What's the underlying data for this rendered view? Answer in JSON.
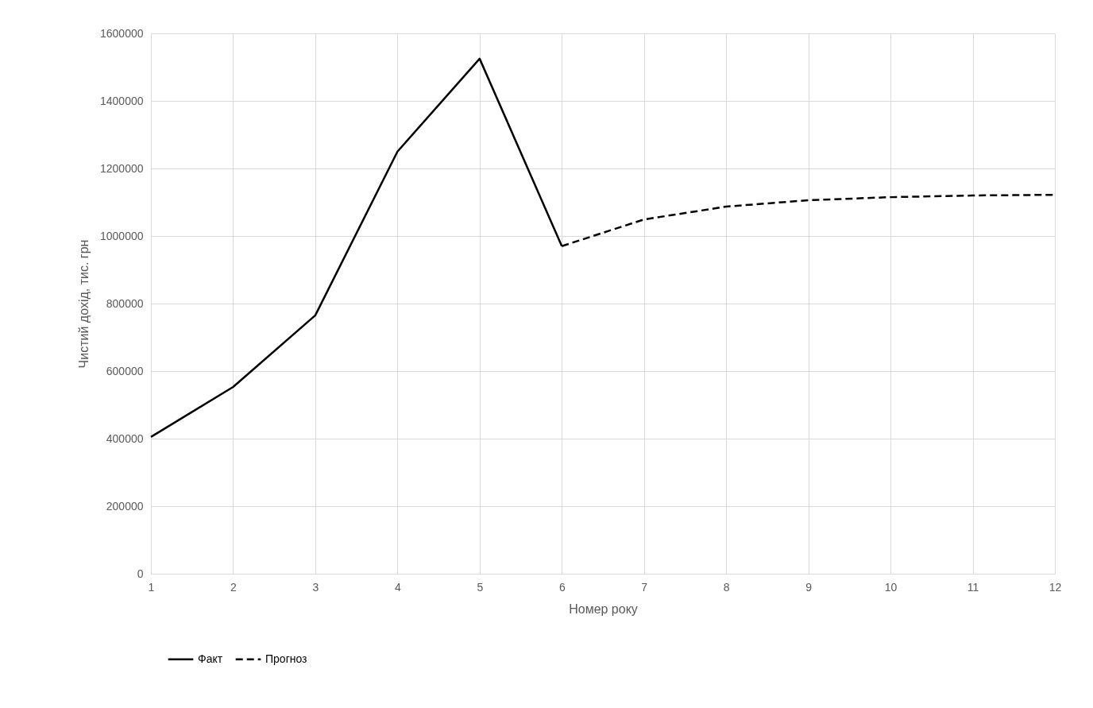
{
  "chart_data": {
    "type": "line",
    "xlabel": "Номер року",
    "ylabel": "Чистий дохід, тис. грн",
    "x": [
      1,
      2,
      3,
      4,
      5,
      6,
      7,
      8,
      9,
      10,
      11,
      12
    ],
    "series": [
      {
        "name": "Факт",
        "color": "#000000",
        "line_style": "solid",
        "values": [
          405000,
          553000,
          765000,
          1250000,
          1525000,
          970000,
          null,
          null,
          null,
          null,
          null,
          null
        ]
      },
      {
        "name": "Прогноз",
        "color": "#000000",
        "line_style": "dashed",
        "values": [
          null,
          null,
          null,
          null,
          null,
          970000,
          1049000,
          1087000,
          1106000,
          1115000,
          1120000,
          1122000
        ]
      }
    ],
    "xlim": [
      1,
      12
    ],
    "xticks": [
      1,
      2,
      3,
      4,
      5,
      6,
      7,
      8,
      9,
      10,
      11,
      12
    ],
    "ylim": [
      0,
      1600000
    ],
    "yticks": [
      0,
      200000,
      400000,
      600000,
      800000,
      1000000,
      1200000,
      1400000,
      1600000
    ],
    "grid": true,
    "legend": "bottom",
    "marker": "none"
  }
}
